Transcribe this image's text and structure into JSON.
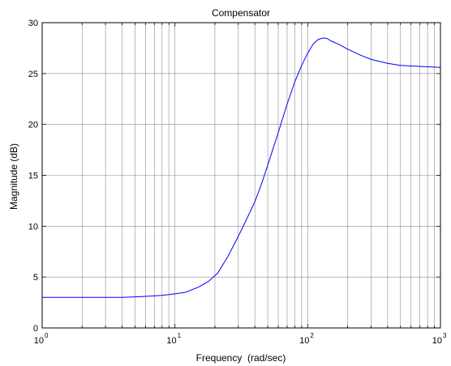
{
  "chart_data": {
    "type": "line",
    "title": "Compensator",
    "xlabel": "Frequency  (rad/sec)",
    "ylabel": "Magnitude (dB)",
    "xscale": "log",
    "xlim": [
      1,
      1000
    ],
    "ylim": [
      0,
      30
    ],
    "grid": true,
    "x_tick_labels": [
      {
        "base": "10",
        "exp": "0"
      },
      {
        "base": "10",
        "exp": "1"
      },
      {
        "base": "10",
        "exp": "2"
      },
      {
        "base": "10",
        "exp": "3"
      }
    ],
    "y_ticks": [
      0,
      5,
      10,
      15,
      20,
      25,
      30
    ],
    "line_color": "#0000ff",
    "series": [
      {
        "x": [
          1,
          2,
          3,
          4,
          5,
          6,
          7,
          8,
          10,
          12,
          15,
          18,
          21,
          25,
          30,
          35,
          40,
          45,
          50,
          60,
          70,
          80,
          90,
          100,
          110,
          120,
          130,
          140,
          150,
          170,
          200,
          250,
          300,
          400,
          500,
          700,
          1000
        ],
        "y": [
          3.0,
          3.0,
          3.0,
          3.0,
          3.05,
          3.1,
          3.15,
          3.2,
          3.35,
          3.5,
          4.0,
          4.6,
          5.4,
          7.0,
          9.0,
          10.8,
          12.4,
          14.2,
          16.0,
          19.2,
          22.0,
          24.2,
          25.8,
          27.0,
          27.9,
          28.35,
          28.5,
          28.45,
          28.2,
          27.9,
          27.4,
          26.8,
          26.4,
          26.0,
          25.8,
          25.7,
          25.6
        ]
      }
    ]
  }
}
